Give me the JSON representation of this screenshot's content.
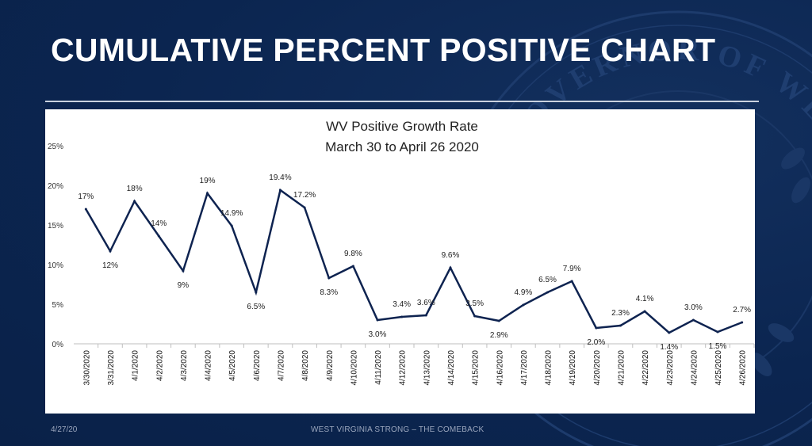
{
  "slide": {
    "title": "CUMULATIVE PERCENT POSITIVE CHART",
    "footer_date": "4/27/20",
    "footer_tagline": "WEST VIRGINIA STRONG – THE COMEBACK"
  },
  "seal": {
    "text": "THE GOVERNOR OF WEST VIRGINIA • STATE • E FIDE"
  },
  "colors": {
    "background": "#0b2550",
    "line": "#0e2350",
    "panel": "#ffffff"
  },
  "chart_data": {
    "type": "line",
    "title": "WV Positive Growth Rate",
    "subtitle": "March 30 to April 26 2020",
    "categories": [
      "3/30/2020",
      "3/31/2020",
      "4/1/2020",
      "4/2/2020",
      "4/3/2020",
      "4/4/2020",
      "4/5/2020",
      "4/6/2020",
      "4/7/2020",
      "4/8/2020",
      "4/9/2020",
      "4/10/2020",
      "4/11/2020",
      "4/12/2020",
      "4/13/2020",
      "4/14/2020",
      "4/15/2020",
      "4/16/2020",
      "4/17/2020",
      "4/18/2020",
      "4/19/2020",
      "4/20/2020",
      "4/21/2020",
      "4/22/2020",
      "4/23/2020",
      "4/24/2020",
      "4/25/2020",
      "4/26/2020"
    ],
    "values": [
      17,
      11.7,
      18,
      13.6,
      9.2,
      19,
      14.9,
      6.5,
      19.4,
      17.2,
      8.3,
      9.8,
      3.0,
      3.4,
      3.6,
      9.6,
      3.5,
      2.9,
      4.9,
      6.5,
      7.9,
      2.0,
      2.3,
      4.1,
      1.4,
      3.0,
      1.5,
      2.7
    ],
    "data_labels": [
      "17%",
      "12%",
      "18%",
      "14%",
      "9%",
      "19%",
      "14.9%",
      "6.5%",
      "19.4%",
      "17.2%",
      "8.3%",
      "9.8%",
      "3.0%",
      "3.4%",
      "3.6%",
      "9.6%",
      "3.5%",
      "2.9%",
      "4.9%",
      "6.5%",
      "7.9%",
      "2.0%",
      "2.3%",
      "4.1%",
      "1.4%",
      "3.0%",
      "1.5%",
      "2.7%"
    ],
    "label_positions": [
      "above",
      "below",
      "above",
      "above",
      "below",
      "above",
      "above",
      "below",
      "above",
      "above",
      "below",
      "above",
      "below",
      "above",
      "above",
      "above",
      "above",
      "below",
      "above",
      "above",
      "above",
      "below",
      "above",
      "above",
      "below",
      "above",
      "below",
      "above"
    ],
    "y_ticks": [
      "0%",
      "5%",
      "10%",
      "15%",
      "20%",
      "25%"
    ],
    "ylim": [
      0,
      25
    ],
    "grid": false,
    "legend": "none"
  }
}
